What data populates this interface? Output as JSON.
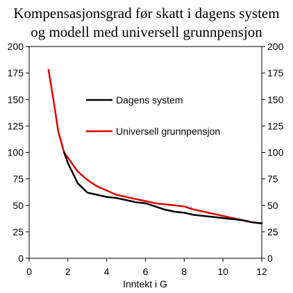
{
  "chart_data": {
    "type": "line",
    "title_lines": [
      "Kompensasjonsgrad før skatt i dagens system",
      "og modell med universell grunnpensjon"
    ],
    "xlabel": "Inntekt i G",
    "ylabel": "",
    "xlim": [
      0,
      12
    ],
    "ylim": [
      0,
      200
    ],
    "x_ticks": [
      0,
      2,
      4,
      6,
      8,
      10,
      12
    ],
    "y_ticks": [
      0,
      25,
      50,
      75,
      100,
      125,
      150,
      175,
      200
    ],
    "y_axis_right_mirrored": true,
    "grid": false,
    "legend_placement": "inside-upper-middle",
    "series": [
      {
        "name": "Dagens system",
        "color": "#000000",
        "x": [
          1.8,
          2.0,
          2.5,
          3.0,
          3.5,
          4.0,
          4.5,
          5.0,
          5.5,
          6.0,
          6.5,
          7.0,
          7.5,
          8.0,
          8.5,
          9.0,
          9.5,
          10.0,
          10.5,
          11.0,
          11.5,
          12.0
        ],
        "y": [
          100,
          90,
          71,
          62,
          60,
          58,
          57,
          55,
          53,
          52,
          49,
          46,
          44,
          43,
          41,
          40,
          39,
          38,
          37,
          36,
          34,
          33
        ]
      },
      {
        "name": "Universell grunnpensjon",
        "color": "#e00000",
        "x": [
          1.0,
          1.25,
          1.5,
          1.8,
          2.0,
          2.5,
          3.0,
          3.5,
          4.0,
          4.5,
          5.0,
          5.5,
          6.0,
          6.5,
          7.0,
          7.5,
          8.0,
          8.5,
          9.0,
          9.5,
          10.0,
          10.5,
          11.0,
          11.5,
          12.0
        ],
        "y": [
          178,
          150,
          120,
          100,
          95,
          82,
          74,
          68,
          64,
          60,
          58,
          56,
          54,
          52,
          51,
          50,
          49,
          46,
          44,
          42,
          40,
          38,
          36,
          34,
          33
        ]
      }
    ]
  }
}
